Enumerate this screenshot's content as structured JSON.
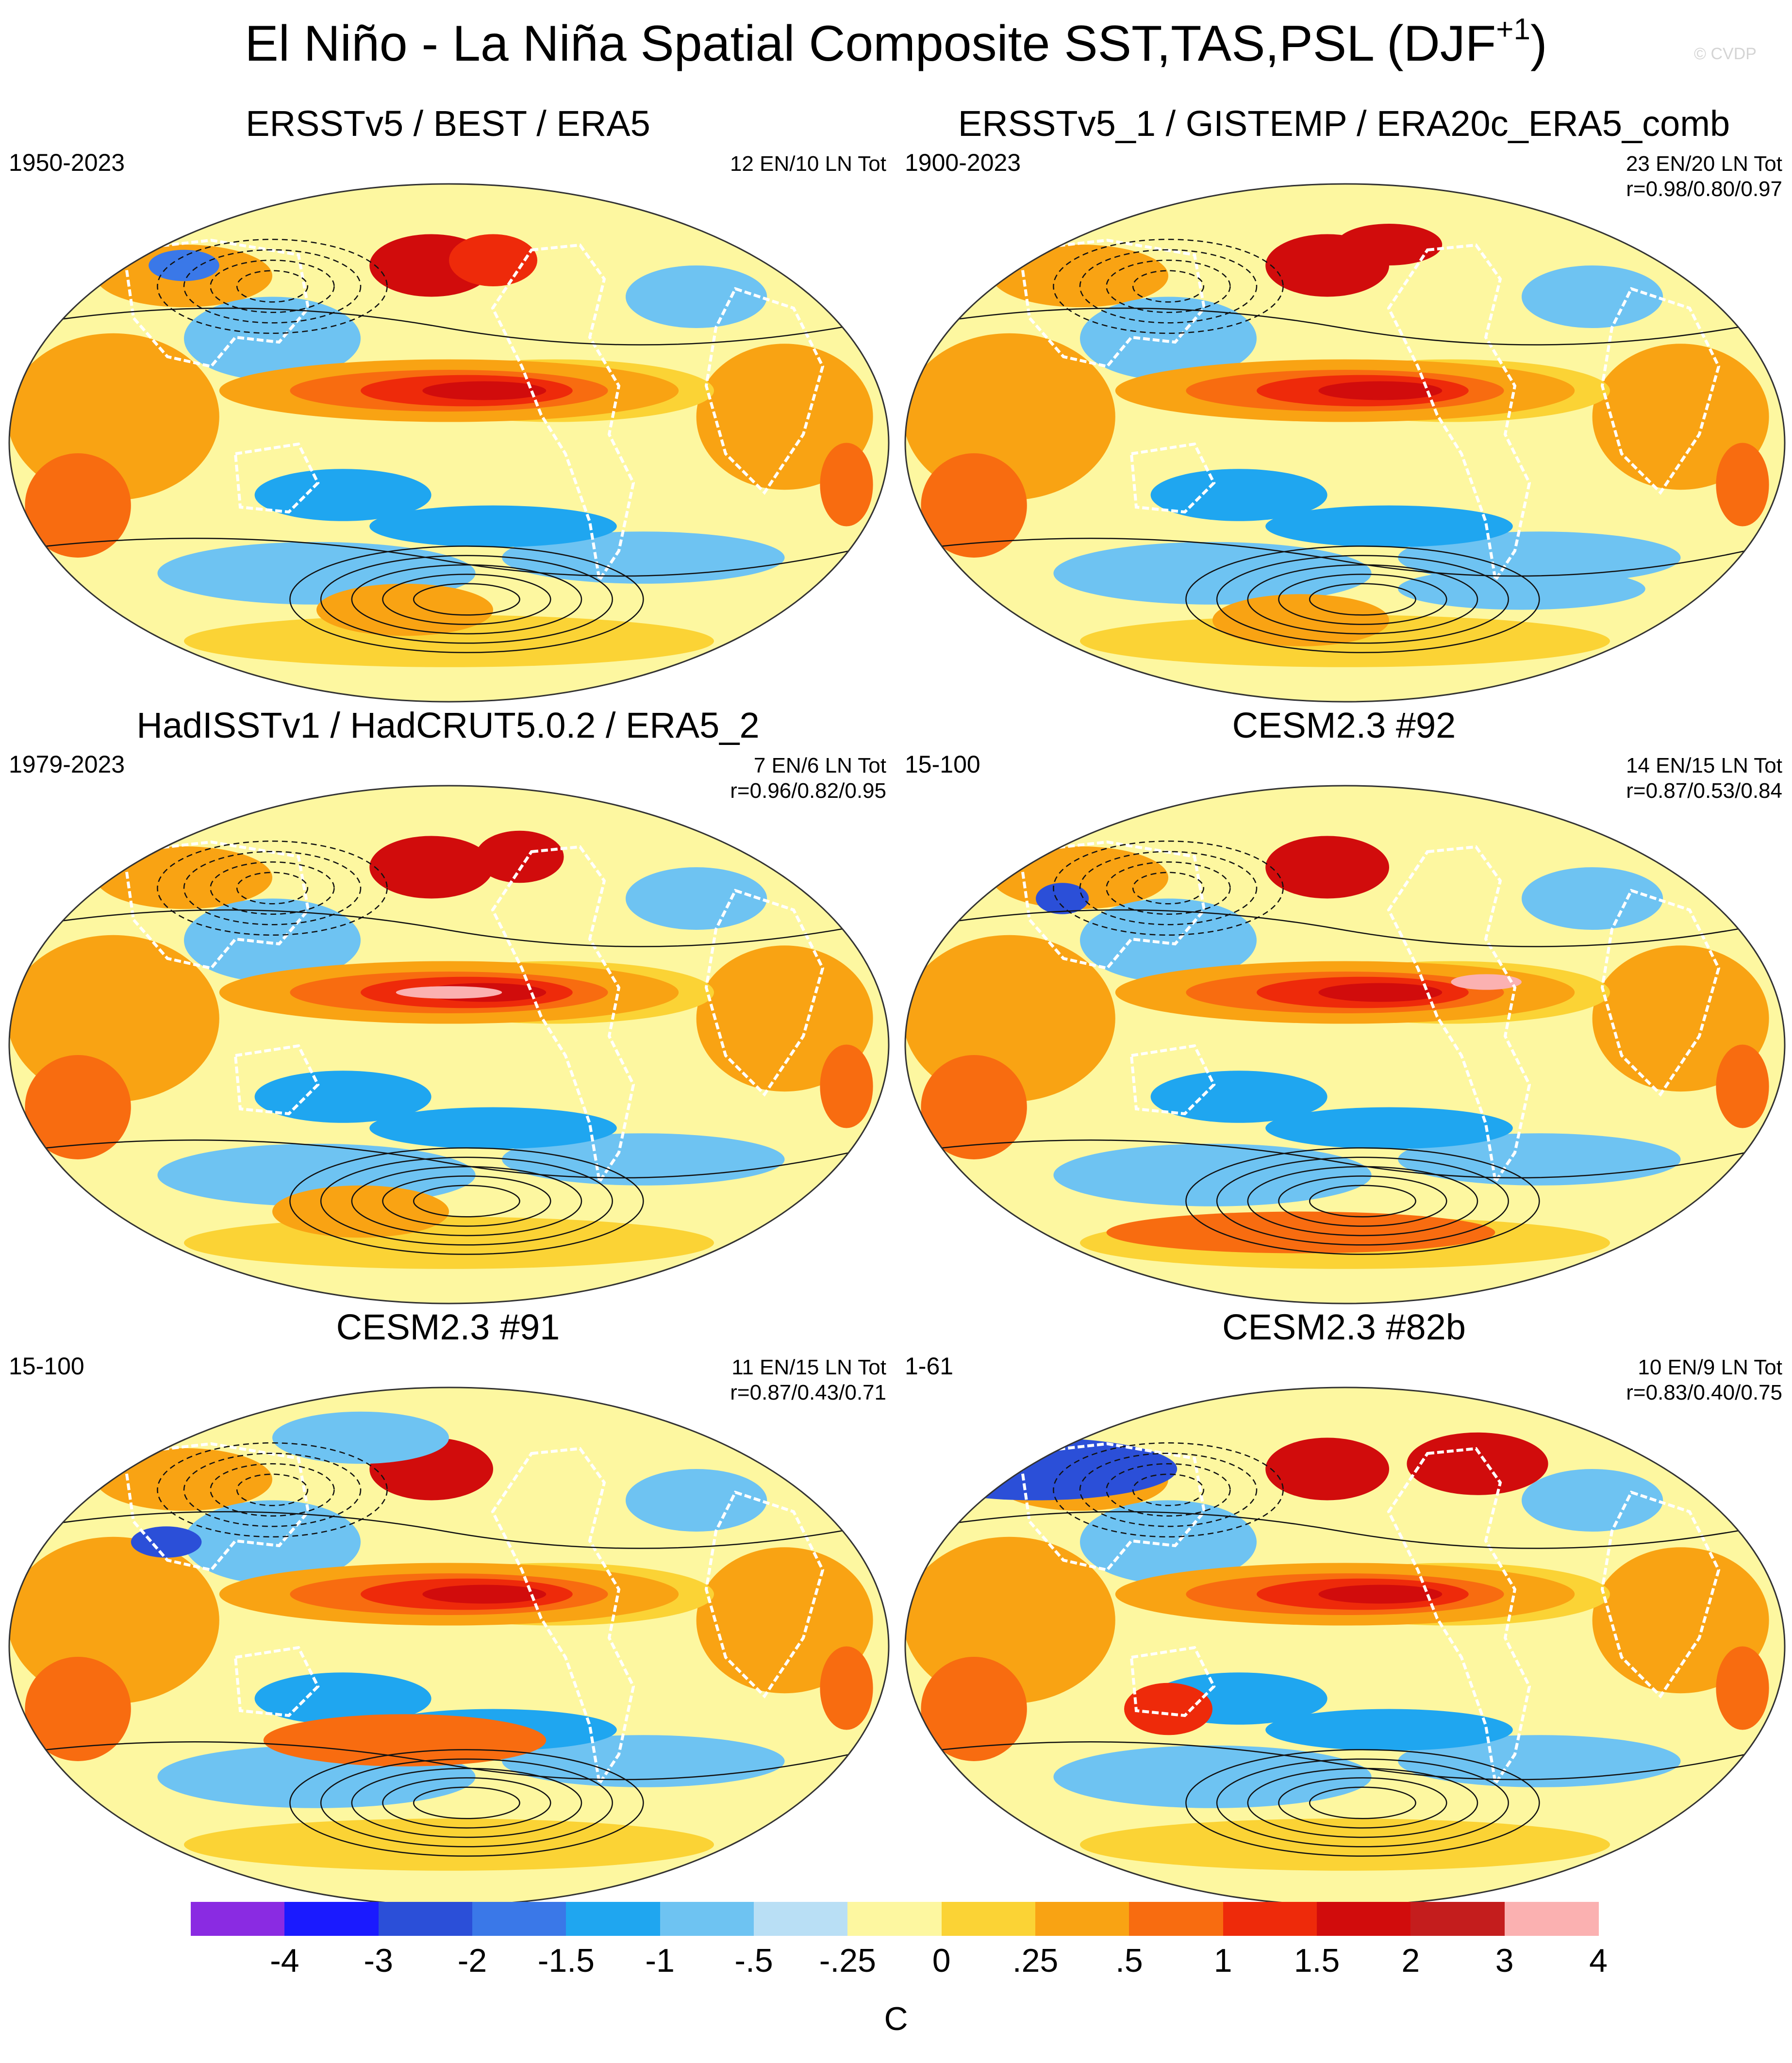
{
  "title": {
    "text": "El Niño - La Niña Spatial Composite SST,TAS,PSL (DJF",
    "superscript": "+1",
    "close": ")"
  },
  "copyright": "© CVDP",
  "panels": [
    {
      "title": "ERSSTv5 / BEST / ERA5",
      "period": "1950-2023",
      "stats_line1": "12 EN/10 LN Tot",
      "stats_line2": ""
    },
    {
      "title": "ERSSTv5_1 / GISTEMP / ERA20c_ERA5_comb",
      "period": "1900-2023",
      "stats_line1": "23 EN/20 LN Tot",
      "stats_line2": "r=0.98/0.80/0.97"
    },
    {
      "title": "HadISSTv1 / HadCRUT5.0.2 / ERA5_2",
      "period": "1979-2023",
      "stats_line1": "7 EN/6 LN Tot",
      "stats_line2": "r=0.96/0.82/0.95"
    },
    {
      "title": "CESM2.3 #92",
      "period": "15-100",
      "stats_line1": "14 EN/15 LN Tot",
      "stats_line2": "r=0.87/0.53/0.84"
    },
    {
      "title": "CESM2.3 #91",
      "period": "15-100",
      "stats_line1": "11 EN/15 LN Tot",
      "stats_line2": "r=0.87/0.43/0.71"
    },
    {
      "title": "CESM2.3 #82b",
      "period": "1-61",
      "stats_line1": "10 EN/9 LN Tot",
      "stats_line2": "r=0.83/0.40/0.75"
    }
  ],
  "colorbar": {
    "colors": [
      "#8a2be2",
      "#1a1aff",
      "#2b4fd8",
      "#3a78e8",
      "#1fa6f0",
      "#6ec3f2",
      "#b9dff5",
      "#fdf7a0",
      "#fbd335",
      "#f9a313",
      "#f86c10",
      "#ee2a0a",
      "#d10c0c",
      "#c41d1d",
      "#fbb1b1"
    ],
    "labels": [
      "-4",
      "-3",
      "-2",
      "-1.5",
      "-1",
      "-.5",
      "-.25",
      "0",
      ".25",
      ".5",
      "1",
      "1.5",
      "2",
      "3",
      "4"
    ],
    "unit": "C"
  }
}
